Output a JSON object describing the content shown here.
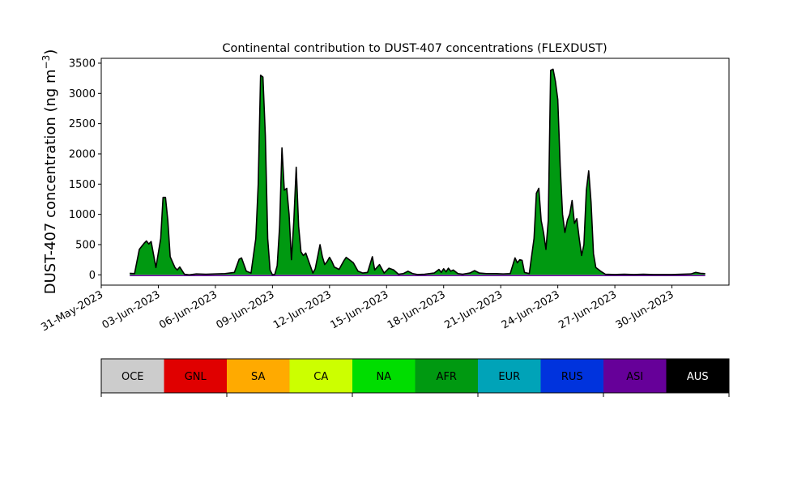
{
  "chart_data": {
    "type": "area",
    "title": "Continental contribution to DUST-407 concentrations (FLEXDUST)",
    "ylabel_main": "DUST-407 concentration (ng m",
    "ylabel_sup": "−3",
    "ylabel_close": ")",
    "xlabel": "",
    "ylim": [
      -170,
      3580
    ],
    "yticks": [
      0,
      500,
      1000,
      1500,
      2000,
      2500,
      3000,
      3500
    ],
    "xlim": [
      "2023-05-31T00:00",
      "2023-07-03T00:00"
    ],
    "xticks": [
      {
        "date": "2023-05-31",
        "label": "31-May-2023"
      },
      {
        "date": "2023-06-03",
        "label": "03-Jun-2023"
      },
      {
        "date": "2023-06-06",
        "label": "06-Jun-2023"
      },
      {
        "date": "2023-06-09",
        "label": "09-Jun-2023"
      },
      {
        "date": "2023-06-12",
        "label": "12-Jun-2023"
      },
      {
        "date": "2023-06-15",
        "label": "15-Jun-2023"
      },
      {
        "date": "2023-06-18",
        "label": "18-Jun-2023"
      },
      {
        "date": "2023-06-21",
        "label": "21-Jun-2023"
      },
      {
        "date": "2023-06-24",
        "label": "24-Jun-2023"
      },
      {
        "date": "2023-06-27",
        "label": "27-Jun-2023"
      },
      {
        "date": "2023-06-30",
        "label": "30-Jun-2023"
      }
    ],
    "series_total": [
      [
        "2023-06-01T12:00",
        25
      ],
      [
        "2023-06-01T18:00",
        20
      ],
      [
        "2023-06-02T00:00",
        420
      ],
      [
        "2023-06-02T06:00",
        520
      ],
      [
        "2023-06-02T09:00",
        560
      ],
      [
        "2023-06-02T12:00",
        510
      ],
      [
        "2023-06-02T15:00",
        550
      ],
      [
        "2023-06-02T21:00",
        120
      ],
      [
        "2023-06-03T03:00",
        600
      ],
      [
        "2023-06-03T06:00",
        1280
      ],
      [
        "2023-06-03T09:00",
        1280
      ],
      [
        "2023-06-03T12:00",
        900
      ],
      [
        "2023-06-03T15:00",
        300
      ],
      [
        "2023-06-03T21:00",
        120
      ],
      [
        "2023-06-04T00:00",
        80
      ],
      [
        "2023-06-04T03:00",
        130
      ],
      [
        "2023-06-04T09:00",
        10
      ],
      [
        "2023-06-04T15:00",
        0
      ],
      [
        "2023-06-05T00:00",
        15
      ],
      [
        "2023-06-05T12:00",
        10
      ],
      [
        "2023-06-06T00:00",
        15
      ],
      [
        "2023-06-06T12:00",
        20
      ],
      [
        "2023-06-07T00:00",
        40
      ],
      [
        "2023-06-07T06:00",
        260
      ],
      [
        "2023-06-07T09:00",
        280
      ],
      [
        "2023-06-07T15:00",
        60
      ],
      [
        "2023-06-07T21:00",
        30
      ],
      [
        "2023-06-08T03:00",
        600
      ],
      [
        "2023-06-08T06:00",
        1500
      ],
      [
        "2023-06-08T09:00",
        3300
      ],
      [
        "2023-06-08T12:00",
        3270
      ],
      [
        "2023-06-08T15:00",
        2300
      ],
      [
        "2023-06-08T18:00",
        600
      ],
      [
        "2023-06-08T21:00",
        80
      ],
      [
        "2023-06-09T00:00",
        0
      ],
      [
        "2023-06-09T03:00",
        10
      ],
      [
        "2023-06-09T06:00",
        150
      ],
      [
        "2023-06-09T09:00",
        800
      ],
      [
        "2023-06-09T12:00",
        2100
      ],
      [
        "2023-06-09T15:00",
        1400
      ],
      [
        "2023-06-09T18:00",
        1430
      ],
      [
        "2023-06-09T21:00",
        1000
      ],
      [
        "2023-06-10T00:00",
        250
      ],
      [
        "2023-06-10T03:00",
        900
      ],
      [
        "2023-06-10T06:00",
        1780
      ],
      [
        "2023-06-10T09:00",
        800
      ],
      [
        "2023-06-10T12:00",
        380
      ],
      [
        "2023-06-10T15:00",
        320
      ],
      [
        "2023-06-10T18:00",
        360
      ],
      [
        "2023-06-10T21:00",
        250
      ],
      [
        "2023-06-11T03:00",
        30
      ],
      [
        "2023-06-11T06:00",
        100
      ],
      [
        "2023-06-11T12:00",
        500
      ],
      [
        "2023-06-11T15:00",
        300
      ],
      [
        "2023-06-11T18:00",
        170
      ],
      [
        "2023-06-11T21:00",
        220
      ],
      [
        "2023-06-12T00:00",
        290
      ],
      [
        "2023-06-12T03:00",
        220
      ],
      [
        "2023-06-12T06:00",
        130
      ],
      [
        "2023-06-12T12:00",
        90
      ],
      [
        "2023-06-12T18:00",
        230
      ],
      [
        "2023-06-12T21:00",
        290
      ],
      [
        "2023-06-13T00:00",
        260
      ],
      [
        "2023-06-13T06:00",
        200
      ],
      [
        "2023-06-13T12:00",
        60
      ],
      [
        "2023-06-13T18:00",
        30
      ],
      [
        "2023-06-14T00:00",
        40
      ],
      [
        "2023-06-14T06:00",
        300
      ],
      [
        "2023-06-14T09:00",
        80
      ],
      [
        "2023-06-14T15:00",
        170
      ],
      [
        "2023-06-14T21:00",
        30
      ],
      [
        "2023-06-15T03:00",
        110
      ],
      [
        "2023-06-15T09:00",
        80
      ],
      [
        "2023-06-15T15:00",
        10
      ],
      [
        "2023-06-15T21:00",
        20
      ],
      [
        "2023-06-16T03:00",
        60
      ],
      [
        "2023-06-16T09:00",
        20
      ],
      [
        "2023-06-16T15:00",
        5
      ],
      [
        "2023-06-17T00:00",
        10
      ],
      [
        "2023-06-17T12:00",
        30
      ],
      [
        "2023-06-17T18:00",
        90
      ],
      [
        "2023-06-17T21:00",
        40
      ],
      [
        "2023-06-18T00:00",
        100
      ],
      [
        "2023-06-18T03:00",
        50
      ],
      [
        "2023-06-18T06:00",
        110
      ],
      [
        "2023-06-18T09:00",
        60
      ],
      [
        "2023-06-18T12:00",
        80
      ],
      [
        "2023-06-18T18:00",
        20
      ],
      [
        "2023-06-19T00:00",
        10
      ],
      [
        "2023-06-19T09:00",
        30
      ],
      [
        "2023-06-19T15:00",
        70
      ],
      [
        "2023-06-19T21:00",
        30
      ],
      [
        "2023-06-20T06:00",
        20
      ],
      [
        "2023-06-20T18:00",
        20
      ],
      [
        "2023-06-21T03:00",
        15
      ],
      [
        "2023-06-21T12:00",
        20
      ],
      [
        "2023-06-21T18:00",
        280
      ],
      [
        "2023-06-21T21:00",
        200
      ],
      [
        "2023-06-22T00:00",
        250
      ],
      [
        "2023-06-22T03:00",
        240
      ],
      [
        "2023-06-22T06:00",
        40
      ],
      [
        "2023-06-22T12:00",
        20
      ],
      [
        "2023-06-22T18:00",
        600
      ],
      [
        "2023-06-22T21:00",
        1350
      ],
      [
        "2023-06-23T00:00",
        1430
      ],
      [
        "2023-06-23T03:00",
        900
      ],
      [
        "2023-06-23T06:00",
        700
      ],
      [
        "2023-06-23T09:00",
        420
      ],
      [
        "2023-06-23T12:00",
        900
      ],
      [
        "2023-06-23T15:00",
        3380
      ],
      [
        "2023-06-23T18:00",
        3400
      ],
      [
        "2023-06-23T21:00",
        3200
      ],
      [
        "2023-06-24T00:00",
        2900
      ],
      [
        "2023-06-24T03:00",
        1800
      ],
      [
        "2023-06-24T06:00",
        1000
      ],
      [
        "2023-06-24T09:00",
        700
      ],
      [
        "2023-06-24T12:00",
        900
      ],
      [
        "2023-06-24T15:00",
        1000
      ],
      [
        "2023-06-24T18:00",
        1230
      ],
      [
        "2023-06-24T21:00",
        850
      ],
      [
        "2023-06-25T00:00",
        930
      ],
      [
        "2023-06-25T03:00",
        600
      ],
      [
        "2023-06-25T06:00",
        320
      ],
      [
        "2023-06-25T09:00",
        500
      ],
      [
        "2023-06-25T12:00",
        1400
      ],
      [
        "2023-06-25T15:00",
        1720
      ],
      [
        "2023-06-25T18:00",
        1200
      ],
      [
        "2023-06-25T21:00",
        350
      ],
      [
        "2023-06-26T00:00",
        120
      ],
      [
        "2023-06-26T06:00",
        60
      ],
      [
        "2023-06-26T12:00",
        10
      ],
      [
        "2023-06-27T00:00",
        5
      ],
      [
        "2023-06-27T12:00",
        10
      ],
      [
        "2023-06-28T00:00",
        5
      ],
      [
        "2023-06-28T12:00",
        10
      ],
      [
        "2023-06-29T00:00",
        5
      ],
      [
        "2023-06-29T12:00",
        5
      ],
      [
        "2023-06-30T00:00",
        5
      ],
      [
        "2023-06-30T12:00",
        10
      ],
      [
        "2023-07-01T00:00",
        15
      ],
      [
        "2023-07-01T06:00",
        40
      ],
      [
        "2023-07-01T12:00",
        25
      ],
      [
        "2023-07-01T18:00",
        20
      ]
    ],
    "area_color": "#009911",
    "line_color": "#000000",
    "under_color": "#660099",
    "legend": {
      "placement": "bottom",
      "items": [
        {
          "label": "OCE",
          "color": "#cccccc",
          "text_color": "#000000"
        },
        {
          "label": "GNL",
          "color": "#e00000",
          "text_color": "#000000"
        },
        {
          "label": "SA",
          "color": "#ffaa00",
          "text_color": "#000000"
        },
        {
          "label": "CA",
          "color": "#ccff00",
          "text_color": "#000000"
        },
        {
          "label": "NA",
          "color": "#00dd00",
          "text_color": "#000000"
        },
        {
          "label": "AFR",
          "color": "#009911",
          "text_color": "#000000"
        },
        {
          "label": "EUR",
          "color": "#00a3b8",
          "text_color": "#000000"
        },
        {
          "label": "RUS",
          "color": "#0033dd",
          "text_color": "#000000"
        },
        {
          "label": "ASI",
          "color": "#660099",
          "text_color": "#000000"
        },
        {
          "label": "AUS",
          "color": "#000000",
          "text_color": "#ffffff"
        }
      ]
    }
  }
}
